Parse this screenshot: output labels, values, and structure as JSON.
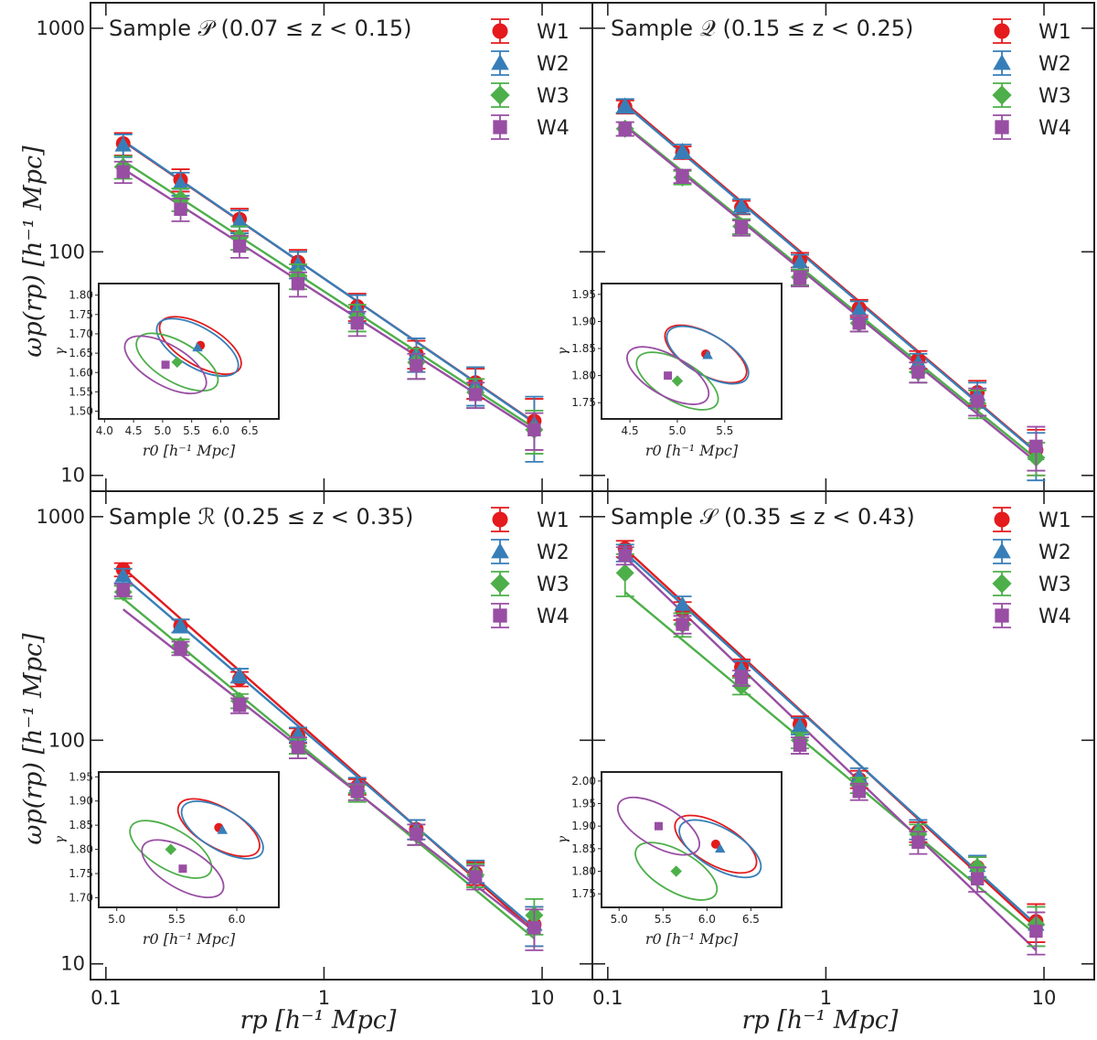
{
  "figure": {
    "y_axis_label": "ωp(rp) [h⁻¹ Mpc]",
    "x_axis_label": "rp [h⁻¹ Mpc]",
    "x_ticks": [
      "0.1",
      "1",
      "10"
    ],
    "y_ticks": [
      "10",
      "100",
      "1000"
    ],
    "legend": [
      "W1",
      "W2",
      "W3",
      "W4"
    ],
    "inset_x_label": "r0 [h⁻¹ Mpc]",
    "inset_y_label": "γ"
  },
  "colors": {
    "W1": "#e41a1c",
    "W2": "#377eb8",
    "W3": "#4daf4a",
    "W4": "#984ea3"
  },
  "markers": {
    "W1": "circle",
    "W2": "triangle",
    "W3": "diamond",
    "W4": "square"
  },
  "chart_data": [
    {
      "type": "scatter",
      "title": "Sample 𝒫 (0.07 ≤ z < 0.15)",
      "xscale": "log",
      "yscale": "log",
      "xlim": [
        0.085,
        17
      ],
      "ylim": [
        8.5,
        1300
      ],
      "x": [
        0.12,
        0.22,
        0.41,
        0.76,
        1.42,
        2.65,
        4.95,
        9.2
      ],
      "series": [
        {
          "name": "W1",
          "values": [
            305,
            210,
            140,
            90,
            57,
            35,
            26,
            17.5
          ],
          "err": [
            35,
            24,
            16,
            12,
            8,
            5,
            4,
            4.5
          ],
          "fit": [
            312,
            17.3
          ]
        },
        {
          "name": "W2",
          "values": [
            300,
            202,
            137,
            88,
            56,
            35,
            25.5,
            17
          ],
          "err": [
            35,
            24,
            16,
            12,
            8,
            6,
            5,
            5.5
          ],
          "fit": [
            314,
            17.2
          ]
        },
        {
          "name": "W3",
          "values": [
            240,
            172,
            116,
            78,
            51,
            32,
            23.5,
            16
          ],
          "err": [
            28,
            20,
            14,
            10,
            7,
            5,
            3.5,
            3.5
          ],
          "fit": [
            255,
            16.3
          ]
        },
        {
          "name": "W4",
          "values": [
            228,
            155,
            106,
            72,
            48,
            31,
            23,
            16
          ],
          "err": [
            25,
            18,
            12,
            9,
            6,
            4,
            3,
            3
          ],
          "fit": [
            235,
            15.8
          ]
        }
      ],
      "inset": {
        "x_ticks": [
          "4.0",
          "4.5",
          "5.0",
          "5.5",
          "6.0",
          "6.5"
        ],
        "y_ticks": [
          "1.50",
          "1.55",
          "1.60",
          "1.65",
          "1.70",
          "1.75",
          "1.80"
        ],
        "xlim": [
          3.9,
          7.0
        ],
        "ylim": [
          1.48,
          1.83
        ],
        "points": [
          {
            "name": "W1",
            "r0": 5.65,
            "gamma": 1.67
          },
          {
            "name": "W2",
            "r0": 5.6,
            "gamma": 1.665
          },
          {
            "name": "W3",
            "r0": 5.25,
            "gamma": 1.627
          },
          {
            "name": "W4",
            "r0": 5.05,
            "gamma": 1.62
          }
        ]
      }
    },
    {
      "type": "scatter",
      "title": "Sample 𝒬 (0.15 ≤ z < 0.25)",
      "xscale": "log",
      "yscale": "log",
      "xlim": [
        0.085,
        17
      ],
      "ylim": [
        8.5,
        1300
      ],
      "x": [
        0.12,
        0.22,
        0.41,
        0.76,
        1.42,
        2.65,
        4.95,
        9.2
      ],
      "series": [
        {
          "name": "W1",
          "values": [
            445,
            278,
            158,
            92,
            56,
            33,
            23.5,
            13
          ],
          "err": [
            30,
            18,
            11,
            7,
            5,
            3,
            3,
            3
          ],
          "fit": [
            463,
            12.8
          ]
        },
        {
          "name": "W2",
          "values": [
            450,
            282,
            160,
            90,
            55,
            32,
            23,
            12.5
          ],
          "err": [
            32,
            20,
            12,
            7,
            5,
            3,
            3,
            3
          ],
          "fit": [
            455,
            12.7
          ]
        },
        {
          "name": "W3",
          "values": [
            355,
            215,
            130,
            77,
            48,
            29,
            21,
            12
          ],
          "err": [
            25,
            15,
            10,
            6,
            4,
            3,
            3,
            2
          ],
          "fit": [
            370,
            11.9
          ]
        },
        {
          "name": "W4",
          "values": [
            355,
            218,
            128,
            76,
            48,
            29,
            21.5,
            13.5
          ],
          "err": [
            25,
            15,
            10,
            6,
            4,
            3,
            3,
            3
          ],
          "fit": [
            365,
            11.5
          ]
        }
      ],
      "inset": {
        "x_ticks": [
          "4.5",
          "5.0",
          "5.5"
        ],
        "y_ticks": [
          "1.75",
          "1.80",
          "1.85",
          "1.90",
          "1.95"
        ],
        "xlim": [
          4.2,
          6.1
        ],
        "ylim": [
          1.72,
          1.97
        ],
        "points": [
          {
            "name": "W1",
            "r0": 5.3,
            "gamma": 1.84
          },
          {
            "name": "W2",
            "r0": 5.32,
            "gamma": 1.838
          },
          {
            "name": "W3",
            "r0": 5.0,
            "gamma": 1.79
          },
          {
            "name": "W4",
            "r0": 4.9,
            "gamma": 1.8
          }
        ]
      }
    },
    {
      "type": "scatter",
      "title": "Sample ℛ (0.25 ≤ z < 0.35)",
      "xscale": "log",
      "yscale": "log",
      "xlim": [
        0.085,
        17
      ],
      "ylim": [
        8.5,
        1300
      ],
      "x": [
        0.12,
        0.22,
        0.41,
        0.76,
        1.42,
        2.65,
        4.95,
        9.2
      ],
      "series": [
        {
          "name": "W1",
          "values": [
            580,
            325,
            188,
            105,
            62,
            40,
            25.5,
            15
          ],
          "err": [
            40,
            22,
            14,
            8,
            5,
            4,
            3,
            3
          ],
          "fit": [
            590,
            14.0
          ]
        },
        {
          "name": "W2",
          "values": [
            545,
            325,
            195,
            106,
            63,
            40,
            26,
            15
          ],
          "err": [
            40,
            22,
            14,
            8,
            5,
            4,
            3,
            3
          ],
          "fit": [
            540,
            14.5
          ]
        },
        {
          "name": "W3",
          "values": [
            460,
            265,
            150,
            94,
            58,
            38,
            25,
            16.5
          ],
          "err": [
            30,
            18,
            11,
            7,
            5,
            4,
            3,
            3
          ],
          "fit": [
            430,
            13.0
          ]
        },
        {
          "name": "W4",
          "values": [
            470,
            258,
            143,
            93,
            59,
            38,
            24.5,
            14.5
          ],
          "err": [
            30,
            18,
            11,
            10,
            5,
            4,
            3,
            3
          ],
          "fit": [
            385,
            14.0
          ]
        }
      ],
      "inset": {
        "x_ticks": [
          "5.0",
          "5.5",
          "6.0"
        ],
        "y_ticks": [
          "1.70",
          "1.75",
          "1.80",
          "1.85",
          "1.90",
          "1.95"
        ],
        "xlim": [
          4.85,
          6.35
        ],
        "ylim": [
          1.68,
          1.96
        ],
        "points": [
          {
            "name": "W1",
            "r0": 5.85,
            "gamma": 1.845
          },
          {
            "name": "W2",
            "r0": 5.88,
            "gamma": 1.84
          },
          {
            "name": "W3",
            "r0": 5.45,
            "gamma": 1.8
          },
          {
            "name": "W4",
            "r0": 5.55,
            "gamma": 1.76
          }
        ]
      }
    },
    {
      "type": "scatter",
      "title": "Sample 𝒮 (0.35 ≤ z < 0.43)",
      "xscale": "log",
      "yscale": "log",
      "xlim": [
        0.085,
        17
      ],
      "ylim": [
        8.5,
        1300
      ],
      "x": [
        0.12,
        0.22,
        0.41,
        0.76,
        1.42,
        2.65,
        4.95,
        9.2
      ],
      "series": [
        {
          "name": "W1",
          "values": [
            720,
            380,
            212,
            118,
            67,
            39,
            27,
            15.5
          ],
          "err": [
            60,
            35,
            18,
            10,
            6,
            4,
            3,
            3
          ],
          "fit": [
            720,
            14.5
          ]
        },
        {
          "name": "W2",
          "values": [
            690,
            405,
            208,
            116,
            69,
            40,
            27.5,
            15
          ],
          "err": [
            60,
            35,
            18,
            10,
            6,
            4,
            3,
            3
          ],
          "fit": [
            690,
            15.0
          ]
        },
        {
          "name": "W3",
          "values": [
            560,
            330,
            175,
            100,
            63,
            38,
            27,
            15
          ],
          "err": [
            120,
            40,
            15,
            8,
            5,
            4,
            3,
            3
          ],
          "fit": [
            460,
            13.5
          ]
        },
        {
          "name": "W4",
          "values": [
            670,
            330,
            190,
            95,
            59,
            35,
            24,
            14
          ],
          "err": [
            60,
            30,
            15,
            8,
            5,
            4,
            3,
            3
          ],
          "fit": [
            660,
            11.5
          ]
        }
      ],
      "inset": {
        "x_ticks": [
          "5.0",
          "5.5",
          "6.0",
          "6.5"
        ],
        "y_ticks": [
          "1.75",
          "1.80",
          "1.85",
          "1.90",
          "1.95",
          "2.00"
        ],
        "xlim": [
          4.8,
          6.85
        ],
        "ylim": [
          1.72,
          2.02
        ],
        "points": [
          {
            "name": "W1",
            "r0": 6.1,
            "gamma": 1.86
          },
          {
            "name": "W2",
            "r0": 6.15,
            "gamma": 1.85
          },
          {
            "name": "W3",
            "r0": 5.65,
            "gamma": 1.8
          },
          {
            "name": "W4",
            "r0": 5.45,
            "gamma": 1.9
          }
        ]
      }
    }
  ]
}
